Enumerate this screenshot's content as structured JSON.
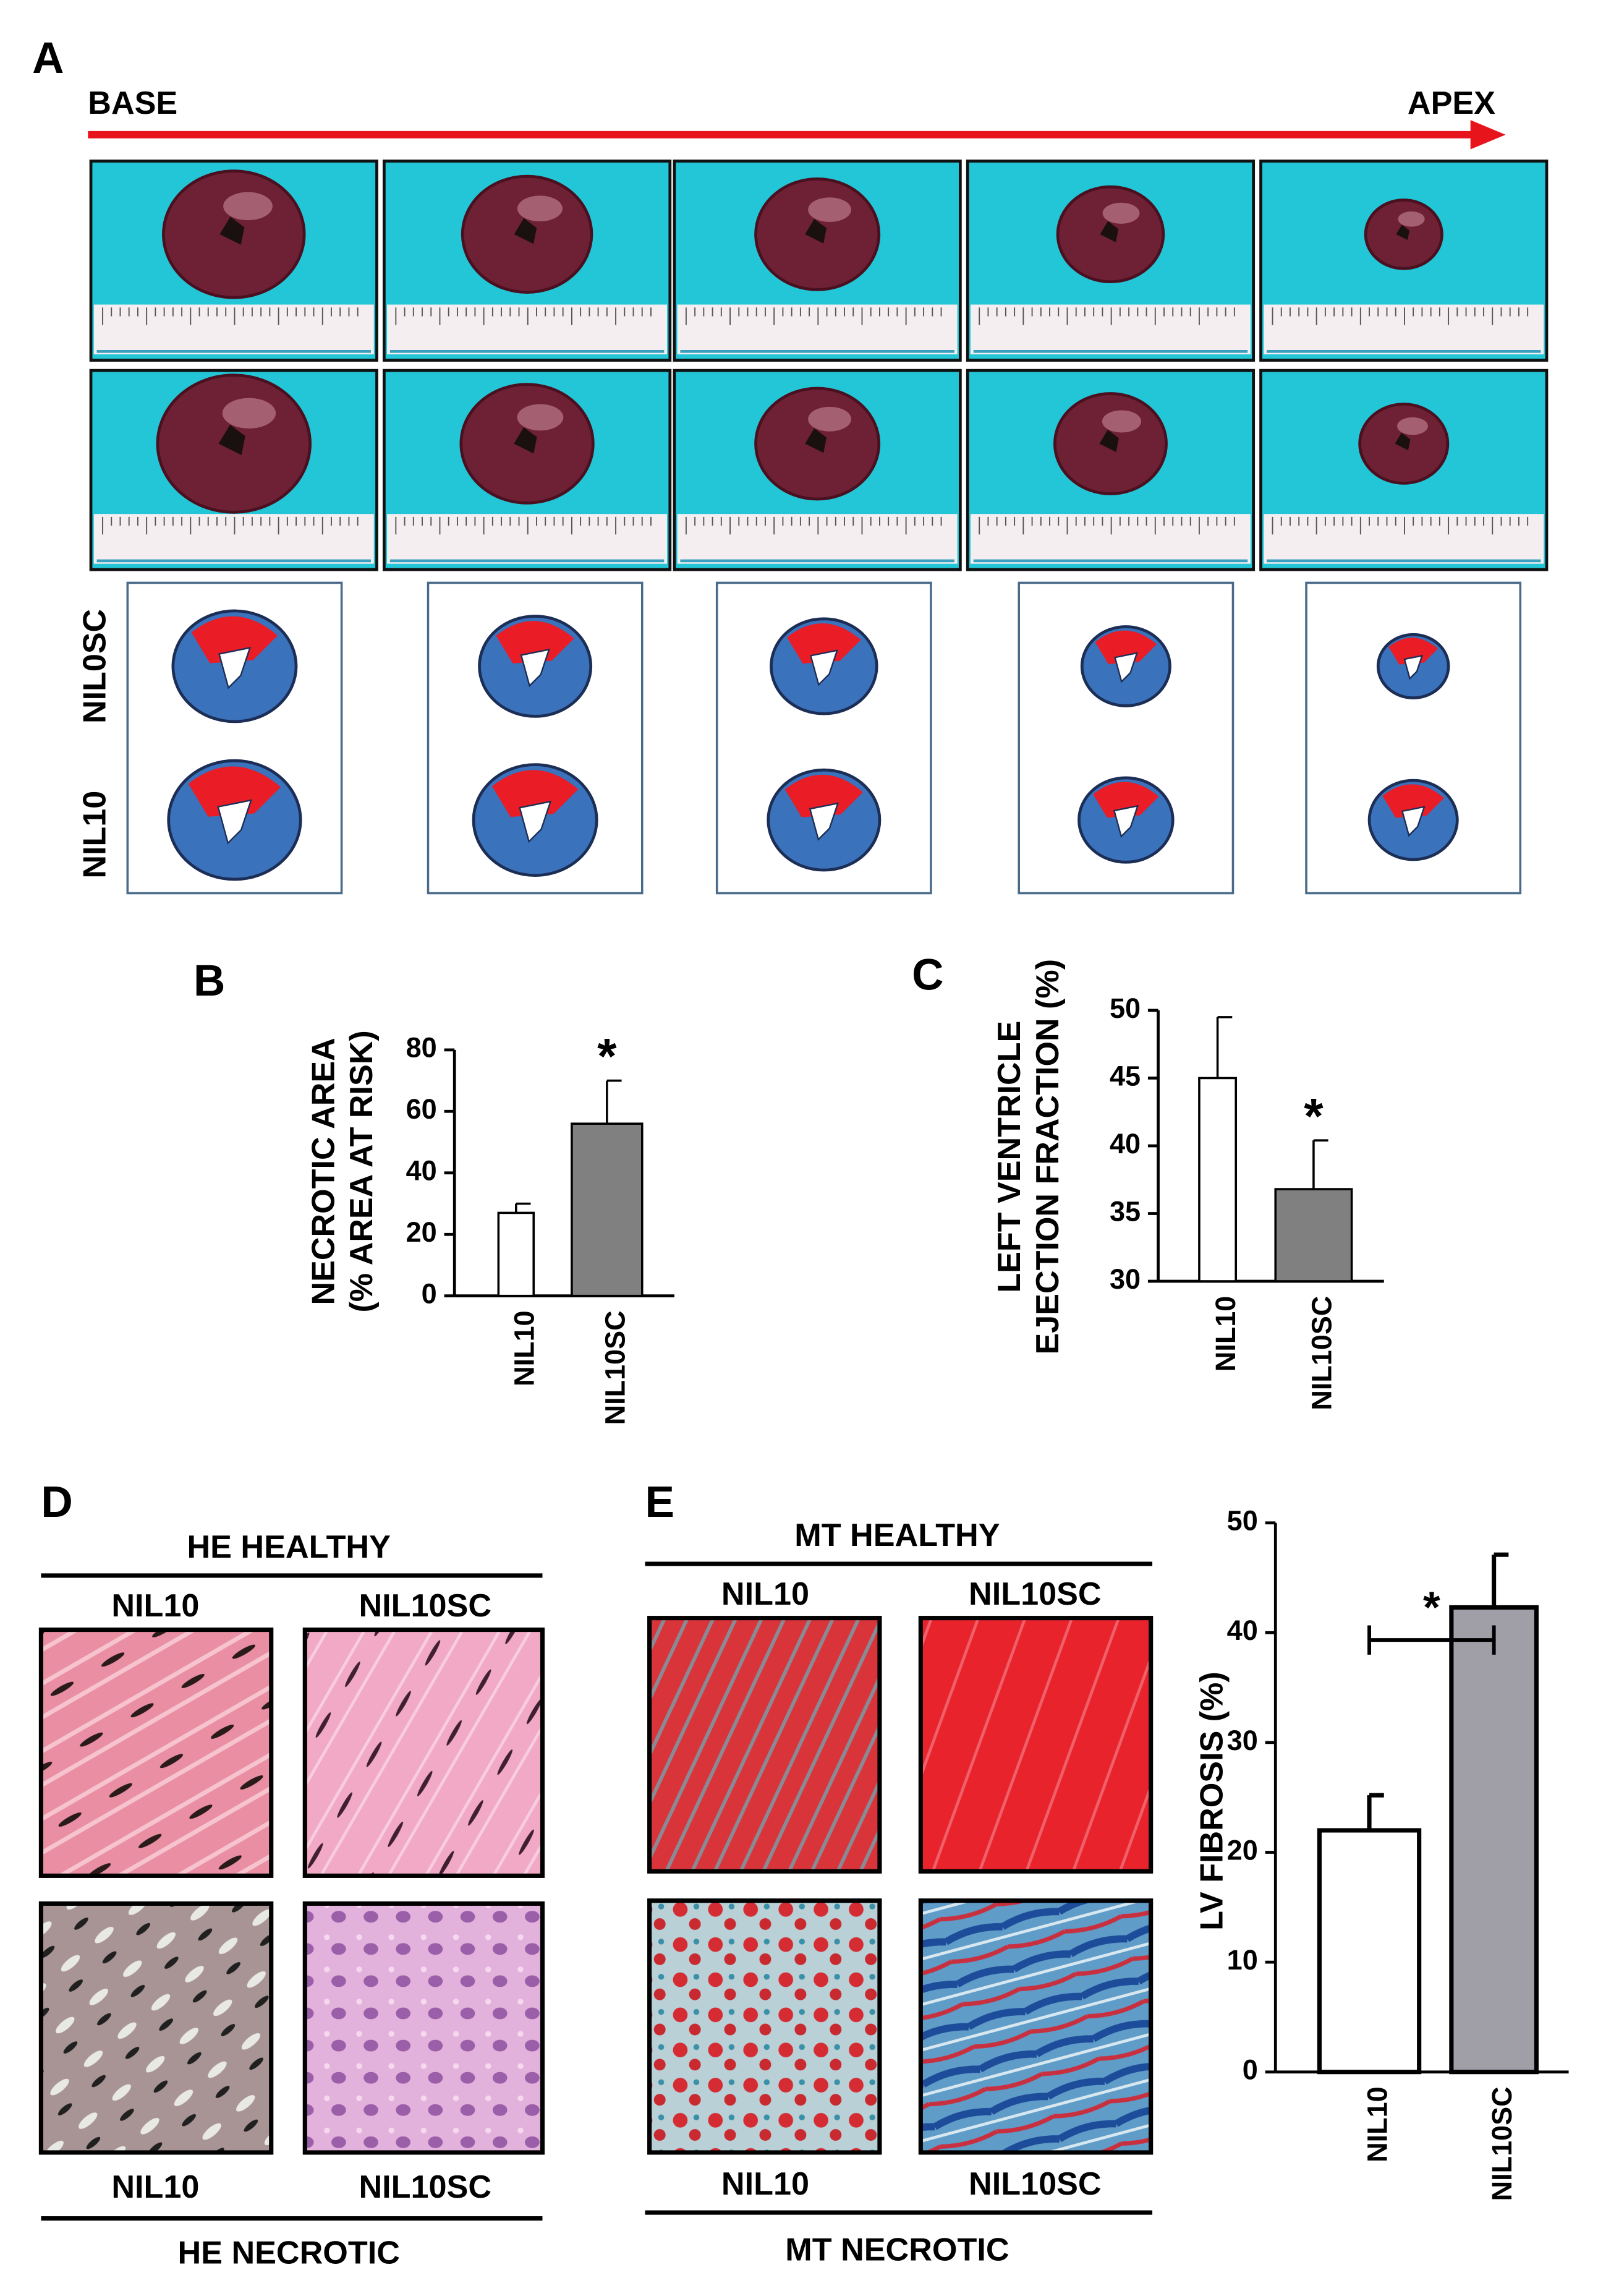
{
  "figure": {
    "panel_labels": [
      "A",
      "B",
      "C",
      "D",
      "E"
    ],
    "panel_a": {
      "start": "BASE",
      "end": "APEX",
      "rows": [
        "NIL0SC",
        "NIL10"
      ]
    },
    "panel_d": {
      "title_top": "HE HEALTHY",
      "top_labels": [
        "NIL10",
        "NIL10SC"
      ],
      "bottom_labels": [
        "NIL10",
        "NIL10SC"
      ],
      "title_bottom": "HE NECROTIC"
    },
    "panel_e": {
      "title_top": "MT HEALTHY",
      "top_labels": [
        "NIL10",
        "NIL10SC"
      ],
      "bottom_labels": [
        "NIL10",
        "NIL10SC"
      ],
      "title_bottom": "MT NECROTIC"
    }
  },
  "chart_data": [
    {
      "type": "bar",
      "ylabel": [
        "NECROTIC AREA",
        "(% AREA AT RISK)"
      ],
      "categories": [
        "NIL10",
        "NIL10SC"
      ],
      "values": [
        27,
        56
      ],
      "errors": [
        3,
        14
      ],
      "colors": [
        "#ffffff",
        "#808080"
      ],
      "ylim": [
        0,
        80
      ],
      "yticks": [
        0,
        20,
        40,
        60,
        80
      ],
      "annotation": "*"
    },
    {
      "type": "bar",
      "ylabel": [
        "LEFT VENTRICLE",
        "EJECTION FRACTION (%)"
      ],
      "categories": [
        "NIL10",
        "NIL10SC"
      ],
      "values": [
        45,
        36.8
      ],
      "errors": [
        4.5,
        3.6
      ],
      "colors": [
        "#ffffff",
        "#808080"
      ],
      "ylim": [
        30,
        50
      ],
      "yticks": [
        30,
        35,
        40,
        45,
        50
      ],
      "annotation": "*"
    },
    {
      "type": "bar",
      "ylabel": [
        "LV FIBROSIS (%)"
      ],
      "categories": [
        "NIL10",
        "NIL10SC"
      ],
      "values": [
        22,
        42.3
      ],
      "errors": [
        3.2,
        4.8
      ],
      "colors": [
        "#ffffff",
        "#a09fa8"
      ],
      "ylim": [
        0,
        50
      ],
      "yticks": [
        0,
        10,
        20,
        30,
        40,
        50
      ],
      "annotation": "*"
    }
  ]
}
